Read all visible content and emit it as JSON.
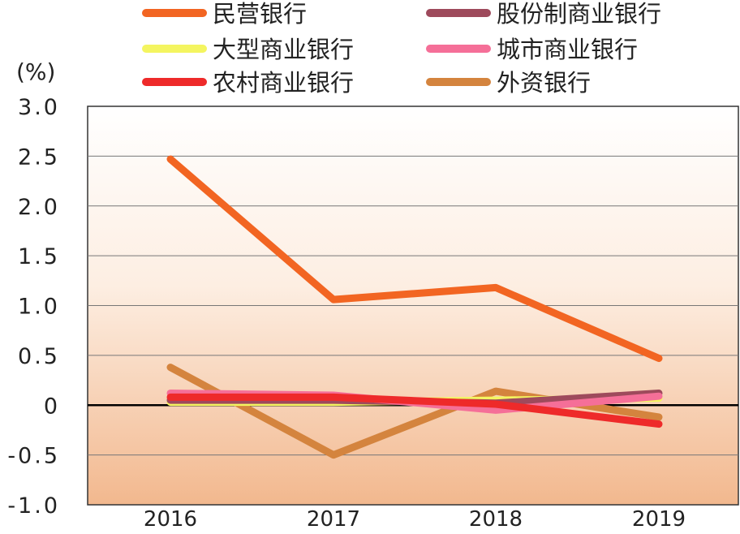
{
  "chart_data": {
    "type": "line",
    "ylabel": "(%)",
    "categories": [
      "2016",
      "2017",
      "2018",
      "2019"
    ],
    "ylim": [
      -1.0,
      3.0
    ],
    "yticks": [
      "3.0",
      "2.5",
      "2.0",
      "1.5",
      "1.0",
      "0.5",
      "0",
      "-0.5",
      "-1.0"
    ],
    "ytick_values": [
      3.0,
      2.5,
      2.0,
      1.5,
      1.0,
      0.5,
      0,
      -0.5,
      -1.0
    ],
    "grid": true,
    "legend_position": "top",
    "series": [
      {
        "name": "民营银行",
        "color": "#f26522",
        "values": [
          2.47,
          1.06,
          1.18,
          0.47
        ]
      },
      {
        "name": "股份制商业银行",
        "color": "#9e4a5c",
        "values": [
          0.05,
          0.05,
          0.02,
          0.12
        ]
      },
      {
        "name": "大型商业银行",
        "color": "#f4f560",
        "values": [
          0.03,
          0.03,
          0.05,
          0.07
        ]
      },
      {
        "name": "城市商业银行",
        "color": "#f56f98",
        "values": [
          0.12,
          0.1,
          -0.05,
          0.09
        ]
      },
      {
        "name": "农村商业银行",
        "color": "#ee2a2a",
        "values": [
          0.08,
          0.08,
          0.01,
          -0.19
        ]
      },
      {
        "name": "外资银行",
        "color": "#d4843e",
        "values": [
          0.38,
          -0.5,
          0.14,
          -0.12
        ]
      }
    ]
  }
}
